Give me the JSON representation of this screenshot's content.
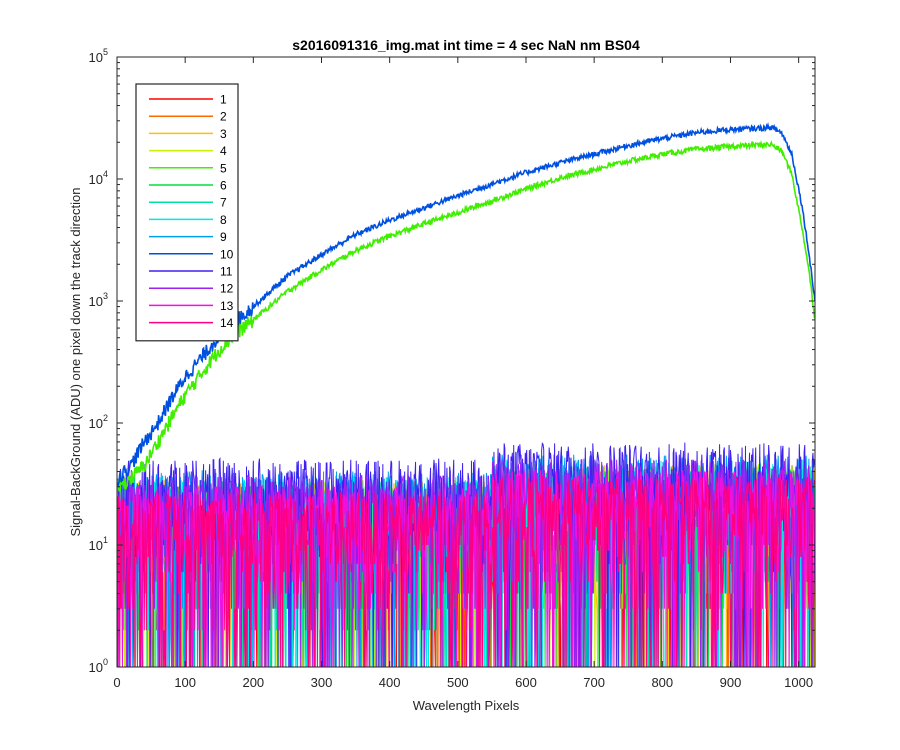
{
  "chart_data": {
    "type": "line",
    "title": "s2016091316_img.mat int time = 4 sec  NaN nm BS04",
    "xlabel": "Wavelength Pixels",
    "ylabel": "Signal-BackGround (ADU) one pixel down the track direction",
    "xlim": [
      0,
      1024
    ],
    "ylim": [
      1,
      100000
    ],
    "yscale": "log",
    "grid": false,
    "legend_position": "top-left",
    "x_ticks": [
      0,
      100,
      200,
      300,
      400,
      500,
      600,
      700,
      800,
      900,
      1000
    ],
    "x_tick_labels": [
      "0",
      "100",
      "200",
      "300",
      "400",
      "500",
      "600",
      "700",
      "800",
      "900",
      "1000"
    ],
    "y_ticks": [
      1,
      10,
      100,
      1000,
      10000,
      100000
    ],
    "y_tick_labels": [
      {
        "base": "10",
        "exp": "0"
      },
      {
        "base": "10",
        "exp": "1"
      },
      {
        "base": "10",
        "exp": "2"
      },
      {
        "base": "10",
        "exp": "3"
      },
      {
        "base": "10",
        "exp": "4"
      },
      {
        "base": "10",
        "exp": "5"
      }
    ],
    "signal_curve_x": [
      0,
      20,
      40,
      60,
      80,
      100,
      125,
      150,
      175,
      200,
      250,
      300,
      350,
      400,
      450,
      500,
      550,
      600,
      650,
      700,
      750,
      800,
      850,
      900,
      940,
      960,
      975,
      990,
      1005,
      1015,
      1024
    ],
    "series": [
      {
        "name": "1",
        "color": "#ff0000",
        "kind": "noise",
        "level": 18
      },
      {
        "name": "2",
        "color": "#ff6a00",
        "kind": "noise",
        "level": 18
      },
      {
        "name": "3",
        "color": "#ffc000",
        "kind": "noise",
        "level": 20
      },
      {
        "name": "4",
        "color": "#c8f000",
        "kind": "noise",
        "level": 20
      },
      {
        "name": "5",
        "color": "#40ee00",
        "kind": "signal",
        "values": [
          30,
          35,
          45,
          70,
          110,
          170,
          260,
          400,
          550,
          700,
          1200,
          1800,
          2600,
          3400,
          4300,
          5300,
          6600,
          8300,
          10200,
          12000,
          14000,
          16000,
          17500,
          18500,
          19000,
          19200,
          17000,
          11000,
          4000,
          1800,
          700
        ]
      },
      {
        "name": "6",
        "color": "#00e040",
        "kind": "noise",
        "level": 18
      },
      {
        "name": "7",
        "color": "#00e0a0",
        "kind": "noise",
        "level": 20
      },
      {
        "name": "8",
        "color": "#00e8e8",
        "kind": "noise",
        "level": 22
      },
      {
        "name": "9",
        "color": "#00a0f0",
        "kind": "noise",
        "level": 24
      },
      {
        "name": "10",
        "color": "#0050e0",
        "kind": "signal",
        "values": [
          35,
          45,
          70,
          100,
          160,
          240,
          350,
          520,
          700,
          900,
          1600,
          2400,
          3500,
          4600,
          5800,
          7300,
          9100,
          11300,
          13600,
          16000,
          18800,
          21500,
          24000,
          25500,
          26000,
          26500,
          24000,
          16000,
          6000,
          2500,
          1000
        ]
      },
      {
        "name": "11",
        "color": "#4020f0",
        "kind": "noise",
        "level": 30
      },
      {
        "name": "12",
        "color": "#a020f0",
        "kind": "noise",
        "level": 22
      },
      {
        "name": "13",
        "color": "#f010e0",
        "kind": "noise",
        "level": 18
      },
      {
        "name": "14",
        "color": "#ff0080",
        "kind": "noise",
        "level": 16
      }
    ]
  }
}
